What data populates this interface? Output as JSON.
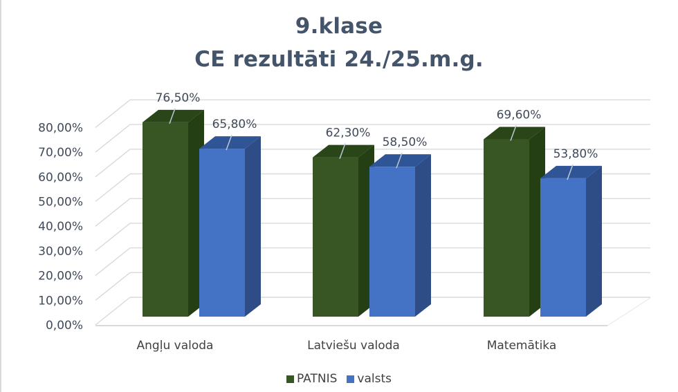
{
  "chart_data": {
    "type": "bar",
    "subtype": "3d-clustered-column",
    "title": "9.klase\nCE rezultāti 24./25.m.g.",
    "title_lines": [
      "9.klase",
      "CE rezultāti 24./25.m.g."
    ],
    "categories": [
      "Angļu valoda",
      "Latviešu valoda",
      "Matemātika"
    ],
    "series": [
      {
        "name": "PATNIS",
        "values": [
          76.5,
          62.3,
          69.6
        ],
        "labels": [
          "76,50%",
          "62,30%",
          "69,60%"
        ],
        "color": "#375623",
        "side_color": "#243f13",
        "top_color": "#2a4518"
      },
      {
        "name": "valsts",
        "values": [
          65.8,
          58.5,
          53.8
        ],
        "labels": [
          "65,80%",
          "58,50%",
          "53,80%"
        ],
        "color": "#4472c4",
        "side_color": "#2e4d86",
        "top_color": "#2f5597"
      }
    ],
    "xlabel": "",
    "ylabel": "",
    "ylim": [
      0,
      80
    ],
    "yticks": [
      "0,00%",
      "10,00%",
      "20,00%",
      "30,00%",
      "40,00%",
      "50,00%",
      "60,00%",
      "70,00%",
      "80,00%"
    ],
    "grid": true,
    "legend_position": "bottom"
  }
}
